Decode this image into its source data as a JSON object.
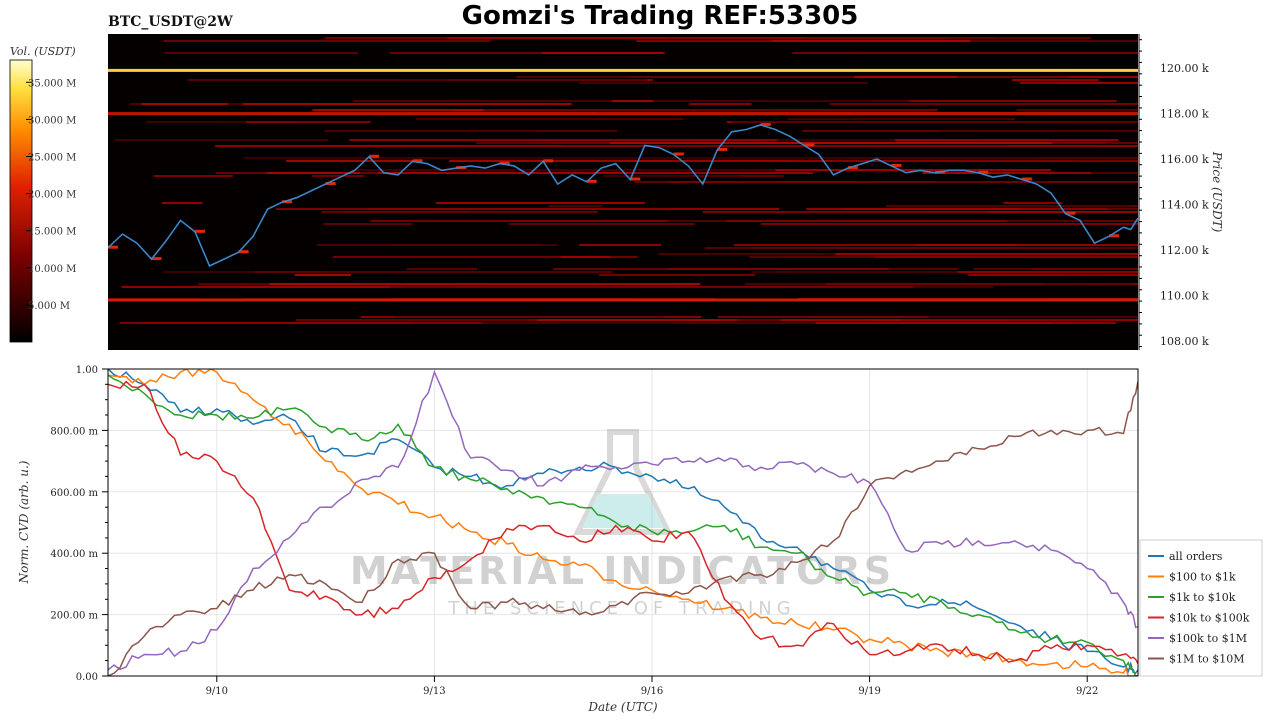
{
  "header": {
    "symbol": "BTC_USDT@2W",
    "title": "Gomzi's Trading REF:53305"
  },
  "colorbar": {
    "label": "Vol. (USDT)",
    "ticks": [
      "5.000 M",
      "10.000 M",
      "15.000 M",
      "20.000 M",
      "25.000 M",
      "30.000 M",
      "35.000 M"
    ],
    "tick_values": [
      5,
      10,
      15,
      20,
      25,
      30,
      35
    ],
    "range": [
      0,
      38
    ]
  },
  "watermark": {
    "line1": "MATERIAL INDICATORS",
    "line2": "THE SCIENCE OF TRADING"
  },
  "chart_data": [
    {
      "type": "heatmap",
      "name": "orderbook",
      "ylabel": "Price (USDT)",
      "yticks": [
        "108.00 k",
        "110.00 k",
        "112.00 k",
        "114.00 k",
        "116.00 k",
        "118.00 k",
        "120.00 k"
      ],
      "ytick_values": [
        108,
        110,
        112,
        114,
        116,
        118,
        120
      ],
      "ylim": [
        107.6,
        121.5
      ],
      "xlim": [
        0,
        14.2
      ],
      "price_color": "#3a86c8",
      "price_series": {
        "x": [
          0,
          0.2,
          0.4,
          0.6,
          0.8,
          1.0,
          1.2,
          1.4,
          1.6,
          1.8,
          2.0,
          2.2,
          2.4,
          2.6,
          2.8,
          3.0,
          3.2,
          3.4,
          3.6,
          3.8,
          4.0,
          4.2,
          4.4,
          4.6,
          4.8,
          5.0,
          5.2,
          5.4,
          5.6,
          5.8,
          6.0,
          6.2,
          6.4,
          6.6,
          6.8,
          7.0,
          7.2,
          7.4,
          7.6,
          7.8,
          8.0,
          8.2,
          8.4,
          8.6,
          8.8,
          9.0,
          9.2,
          9.4,
          9.6,
          9.8,
          10.0,
          10.2,
          10.4,
          10.6,
          10.8,
          11.0,
          11.2,
          11.4,
          11.6,
          11.8,
          12.0,
          12.2,
          12.4,
          12.6,
          12.8,
          13.0,
          13.2,
          13.4,
          13.6,
          13.8,
          14.0,
          14.1,
          14.2
        ],
        "y": [
          112.1,
          112.7,
          112.3,
          111.6,
          112.4,
          113.3,
          112.8,
          111.3,
          111.6,
          111.9,
          112.6,
          113.8,
          114.1,
          114.3,
          114.6,
          114.9,
          115.2,
          115.5,
          116.1,
          115.4,
          115.3,
          115.9,
          115.8,
          115.5,
          115.6,
          115.7,
          115.6,
          115.8,
          115.7,
          115.3,
          115.9,
          114.9,
          115.3,
          115.0,
          115.6,
          115.8,
          115.1,
          116.6,
          116.5,
          116.2,
          115.7,
          114.9,
          116.4,
          117.2,
          117.3,
          117.5,
          117.3,
          117.0,
          116.6,
          116.2,
          115.3,
          115.6,
          115.8,
          116.0,
          115.7,
          115.4,
          115.5,
          115.4,
          115.5,
          115.5,
          115.4,
          115.2,
          115.3,
          115.1,
          114.9,
          114.5,
          113.6,
          113.3,
          112.3,
          112.6,
          113.0,
          112.9,
          113.4
        ]
      },
      "bright_levels": [
        {
          "price": 119.9,
          "intensity": 0.95
        },
        {
          "price": 109.8,
          "intensity": 0.55
        },
        {
          "price": 118.0,
          "intensity": 0.5
        }
      ]
    },
    {
      "type": "line",
      "name": "cvd",
      "xlabel": "Date (UTC)",
      "ylabel": "Norm. CVD (arb. u.)",
      "x_ticks": [
        "9/10",
        "9/13",
        "9/16",
        "9/19",
        "9/22"
      ],
      "x_tick_values": [
        1.5,
        4.5,
        7.5,
        10.5,
        13.5
      ],
      "xlim": [
        0,
        14.2
      ],
      "y_ticks": [
        "0.00",
        "200.00 m",
        "400.00 m",
        "600.00 m",
        "800.00 m",
        "1.00"
      ],
      "y_tick_values": [
        0,
        0.2,
        0.4,
        0.6,
        0.8,
        1.0
      ],
      "ylim": [
        0,
        1.0
      ],
      "grid": true,
      "legend_position": "bottom-right",
      "x": [
        0,
        0.5,
        1.0,
        1.5,
        2.0,
        2.5,
        3.0,
        3.5,
        4.0,
        4.5,
        5.0,
        5.5,
        6.0,
        6.5,
        7.0,
        7.5,
        8.0,
        8.5,
        9.0,
        9.5,
        10.0,
        10.5,
        11.0,
        11.5,
        12.0,
        12.5,
        13.0,
        13.5,
        14.0,
        14.2
      ],
      "series": [
        {
          "name": "all orders",
          "color": "#1f77b4",
          "values": [
            1.0,
            0.95,
            0.86,
            0.87,
            0.82,
            0.84,
            0.73,
            0.72,
            0.77,
            0.68,
            0.65,
            0.62,
            0.66,
            0.68,
            0.68,
            0.65,
            0.61,
            0.55,
            0.45,
            0.42,
            0.35,
            0.28,
            0.23,
            0.25,
            0.22,
            0.17,
            0.12,
            0.08,
            0.03,
            0.02
          ]
        },
        {
          "name": "$100 to $1k",
          "color": "#ff7f0e",
          "values": [
            0.98,
            0.95,
            0.99,
            0.99,
            0.9,
            0.82,
            0.7,
            0.61,
            0.56,
            0.52,
            0.47,
            0.43,
            0.38,
            0.36,
            0.31,
            0.28,
            0.25,
            0.22,
            0.19,
            0.17,
            0.15,
            0.12,
            0.1,
            0.08,
            0.07,
            0.05,
            0.04,
            0.03,
            0.01,
            0.0
          ]
        },
        {
          "name": "$1k to $10k",
          "color": "#2ca02c",
          "values": [
            0.98,
            0.92,
            0.85,
            0.85,
            0.84,
            0.87,
            0.81,
            0.77,
            0.82,
            0.68,
            0.64,
            0.61,
            0.58,
            0.55,
            0.5,
            0.47,
            0.47,
            0.49,
            0.42,
            0.4,
            0.32,
            0.27,
            0.27,
            0.24,
            0.2,
            0.15,
            0.12,
            0.11,
            0.05,
            0.0
          ]
        },
        {
          "name": "$10k to $100k",
          "color": "#d62728",
          "values": [
            0.95,
            0.95,
            0.72,
            0.7,
            0.58,
            0.28,
            0.26,
            0.2,
            0.22,
            0.32,
            0.38,
            0.48,
            0.49,
            0.44,
            0.49,
            0.44,
            0.47,
            0.25,
            0.12,
            0.1,
            0.17,
            0.07,
            0.08,
            0.1,
            0.07,
            0.05,
            0.09,
            0.1,
            0.07,
            0.04
          ]
        },
        {
          "name": "$100k to $1M",
          "color": "#9467bd",
          "values": [
            0.02,
            0.07,
            0.08,
            0.15,
            0.35,
            0.45,
            0.55,
            0.64,
            0.68,
            0.99,
            0.71,
            0.67,
            0.62,
            0.67,
            0.68,
            0.69,
            0.7,
            0.7,
            0.68,
            0.69,
            0.66,
            0.63,
            0.41,
            0.43,
            0.44,
            0.44,
            0.41,
            0.35,
            0.24,
            0.16
          ]
        },
        {
          "name": "$1M to $10M",
          "color": "#8c564b",
          "values": [
            0.0,
            0.13,
            0.2,
            0.22,
            0.28,
            0.33,
            0.3,
            0.24,
            0.38,
            0.4,
            0.22,
            0.24,
            0.22,
            0.2,
            0.23,
            0.27,
            0.27,
            0.32,
            0.33,
            0.37,
            0.44,
            0.62,
            0.67,
            0.7,
            0.74,
            0.78,
            0.8,
            0.8,
            0.79,
            0.96
          ]
        }
      ]
    }
  ]
}
